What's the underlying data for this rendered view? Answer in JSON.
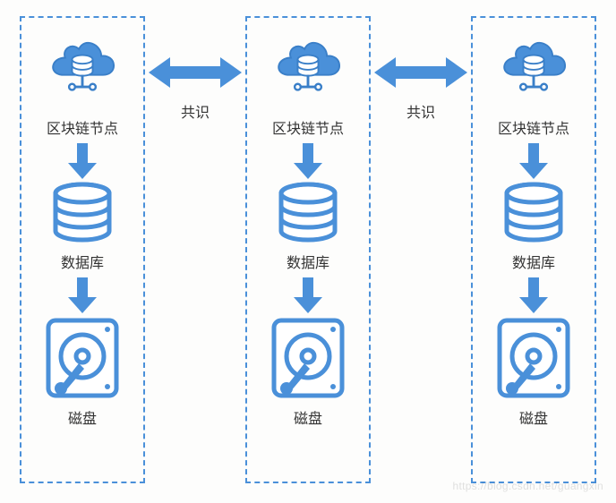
{
  "colors": {
    "border": "#4a90d9",
    "icon_fill": "#4a90d9",
    "icon_stroke": "#3a7fc8",
    "arrow_fill": "#4a90d9",
    "text": "#333333",
    "bg": "#fdfdfc"
  },
  "labels": {
    "node": "区块链节点",
    "db": "数据库",
    "disk": "磁盘",
    "consensus": "共识"
  },
  "nodes": [
    {
      "id": "n1"
    },
    {
      "id": "n2"
    },
    {
      "id": "n3"
    }
  ],
  "watermark": "https://blog.csdn.net/guangxin"
}
